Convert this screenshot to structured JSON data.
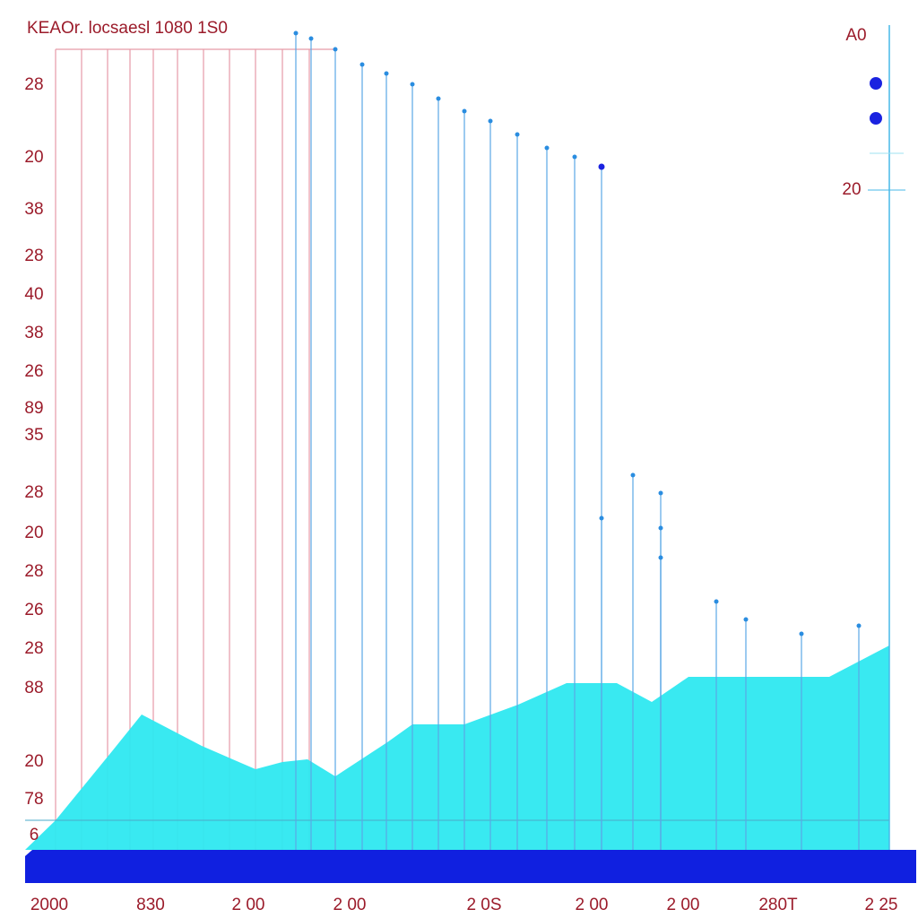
{
  "title": "KEAOr. locsaesl 1080 1S0",
  "right_labels": [
    "A0",
    "20"
  ],
  "left_labels": [
    "28",
    "20",
    "38",
    "28",
    "40",
    "38",
    "26",
    "89",
    "35",
    "28",
    "20",
    "28",
    "26",
    "28",
    "88",
    "20",
    "78",
    "6"
  ],
  "x_labels": [
    "2000",
    "830",
    "2 00",
    "2 00",
    "2 0S",
    "2 00",
    "2 00",
    "280T",
    "2 25"
  ]
}
